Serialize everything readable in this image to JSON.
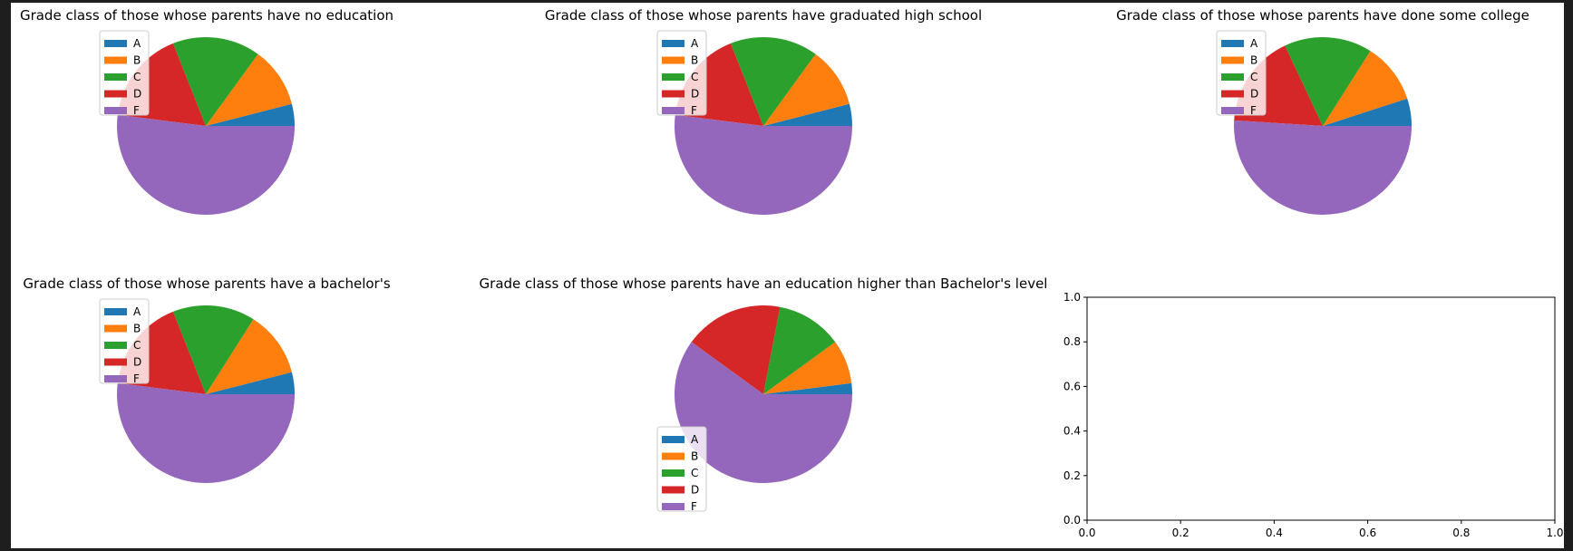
{
  "colors": {
    "A": "#1f77b4",
    "B": "#ff7f0e",
    "C": "#2ca02c",
    "D": "#d62728",
    "F": "#9467bd"
  },
  "chart_data": [
    {
      "type": "pie",
      "title": "Grade class of those whose parents have no education",
      "labels": [
        "A",
        "B",
        "C",
        "D",
        "F"
      ],
      "values": [
        4,
        11,
        16,
        17,
        52
      ],
      "legend": "upper-left"
    },
    {
      "type": "pie",
      "title": "Grade class of those whose parents have graduated high school",
      "labels": [
        "A",
        "B",
        "C",
        "D",
        "F"
      ],
      "values": [
        4,
        11,
        16,
        17,
        52
      ],
      "legend": "upper-left"
    },
    {
      "type": "pie",
      "title": "Grade class of those whose parents have done some college",
      "labels": [
        "A",
        "B",
        "C",
        "D",
        "F"
      ],
      "values": [
        5,
        11,
        16,
        17,
        51
      ],
      "legend": "upper-left"
    },
    {
      "type": "pie",
      "title": "Grade class of those whose parents have a bachelor's",
      "labels": [
        "A",
        "B",
        "C",
        "D",
        "F"
      ],
      "values": [
        4,
        12,
        15,
        17,
        52
      ],
      "legend": "upper-left"
    },
    {
      "type": "pie",
      "title": "Grade class of those whose parents have an education higher than Bachelor's level",
      "labels": [
        "A",
        "B",
        "C",
        "D",
        "F"
      ],
      "values": [
        2,
        8,
        12,
        18,
        60
      ],
      "legend": "lower-left"
    },
    {
      "type": "line",
      "title": "",
      "xlim": [
        0.0,
        1.0
      ],
      "ylim": [
        0.0,
        1.0
      ],
      "xticks": [
        "0.0",
        "0.2",
        "0.4",
        "0.6",
        "0.8",
        "1.0"
      ],
      "yticks": [
        "0.0",
        "0.2",
        "0.4",
        "0.6",
        "0.8",
        "1.0"
      ],
      "series": []
    }
  ]
}
